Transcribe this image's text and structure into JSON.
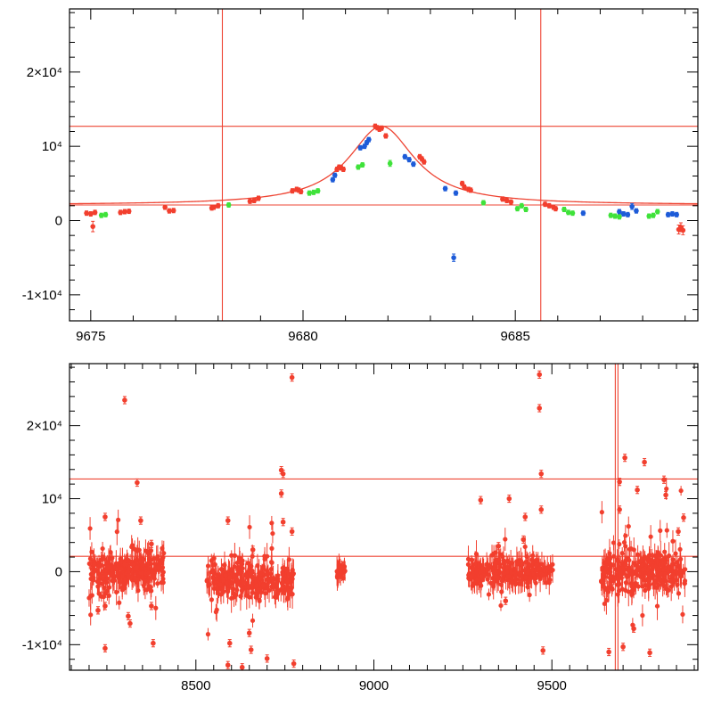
{
  "colors": {
    "red": "#f23f2e",
    "blue": "#1d5bd8",
    "green": "#3fe23a",
    "line": "#ee4433",
    "axis": "#000000"
  },
  "chart_data": [
    {
      "type": "scatter",
      "name": "top-panel-zoom",
      "title": "",
      "xlabel": "",
      "ylabel": "",
      "xlim": [
        9674.5,
        9689.3
      ],
      "ylim": [
        -13500,
        28500
      ],
      "x_ticks": [
        {
          "value": 9675,
          "label": "9675"
        },
        {
          "value": 9680,
          "label": "9680"
        },
        {
          "value": 9685,
          "label": "9685"
        }
      ],
      "y_ticks": [
        {
          "value": 20000,
          "label": "2×10⁴"
        },
        {
          "value": 10000,
          "label": "10⁴"
        },
        {
          "value": 0,
          "label": "0"
        },
        {
          "value": -10000,
          "label": "-1×10⁴"
        }
      ],
      "vlines": [
        9678.1,
        9685.6
      ],
      "hlines": [
        12700,
        2100
      ],
      "model": {
        "t0": 9681.85,
        "baseline": 2100,
        "peak": 12700,
        "width": 0.95
      },
      "series": [
        {
          "name": "red",
          "color": "#f23f2e",
          "points": [
            [
              9674.9,
              1000,
              300
            ],
            [
              9675.0,
              900,
              300
            ],
            [
              9675.05,
              -800,
              700
            ],
            [
              9675.1,
              1100,
              300
            ],
            [
              9675.7,
              1100,
              300
            ],
            [
              9675.8,
              1200,
              300
            ],
            [
              9675.9,
              1250,
              300
            ],
            [
              9676.75,
              1800,
              300
            ],
            [
              9676.85,
              1300,
              300
            ],
            [
              9676.95,
              1350,
              300
            ],
            [
              9677.85,
              1700,
              300
            ],
            [
              9677.9,
              1800,
              300
            ],
            [
              9678.0,
              2000,
              300
            ],
            [
              9678.75,
              2600,
              300
            ],
            [
              9678.85,
              2700,
              300
            ],
            [
              9678.95,
              3000,
              300
            ],
            [
              9679.75,
              4000,
              300
            ],
            [
              9679.85,
              4200,
              300
            ],
            [
              9679.9,
              4100,
              300
            ],
            [
              9679.95,
              3900,
              300
            ],
            [
              9680.8,
              6900,
              300
            ],
            [
              9680.85,
              7200,
              300
            ],
            [
              9680.9,
              7100,
              300
            ],
            [
              9680.95,
              6900,
              300
            ],
            [
              9681.7,
              12700,
              300
            ],
            [
              9681.75,
              12500,
              300
            ],
            [
              9681.8,
              12300,
              300
            ],
            [
              9681.85,
              12450,
              300
            ],
            [
              9681.95,
              11400,
              300
            ],
            [
              9682.75,
              8600,
              300
            ],
            [
              9682.8,
              8300,
              300
            ],
            [
              9682.85,
              7900,
              300
            ],
            [
              9683.75,
              5000,
              300
            ],
            [
              9683.8,
              4500,
              300
            ],
            [
              9683.9,
              4200,
              300
            ],
            [
              9683.95,
              4100,
              300
            ],
            [
              9684.7,
              2900,
              300
            ],
            [
              9684.8,
              2700,
              300
            ],
            [
              9684.9,
              2500,
              300
            ],
            [
              9685.7,
              2200,
              300
            ],
            [
              9685.8,
              2000,
              300
            ],
            [
              9685.9,
              1800,
              300
            ],
            [
              9685.95,
              1600,
              300
            ],
            [
              9688.85,
              -1200,
              600
            ],
            [
              9688.9,
              -900,
              600
            ],
            [
              9688.95,
              -1300,
              600
            ]
          ]
        },
        {
          "name": "blue",
          "color": "#1d5bd8",
          "points": [
            [
              9680.7,
              5500,
              300
            ],
            [
              9680.75,
              6100,
              300
            ],
            [
              9681.35,
              9800,
              300
            ],
            [
              9681.45,
              10000,
              300
            ],
            [
              9681.5,
              10500,
              300
            ],
            [
              9681.55,
              10900,
              300
            ],
            [
              9682.4,
              8600,
              300
            ],
            [
              9682.5,
              8200,
              300
            ],
            [
              9682.6,
              7600,
              300
            ],
            [
              9683.35,
              4300,
              300
            ],
            [
              9683.55,
              -5000,
              500
            ],
            [
              9683.6,
              3700,
              300
            ],
            [
              9686.6,
              1000,
              300
            ],
            [
              9687.45,
              1200,
              300
            ],
            [
              9687.55,
              900,
              300
            ],
            [
              9687.65,
              800,
              300
            ],
            [
              9687.75,
              1900,
              400
            ],
            [
              9687.85,
              1300,
              300
            ],
            [
              9688.6,
              800,
              300
            ],
            [
              9688.7,
              900,
              300
            ],
            [
              9688.8,
              800,
              300
            ]
          ]
        },
        {
          "name": "green",
          "color": "#3fe23a",
          "points": [
            [
              9675.25,
              700,
              300
            ],
            [
              9675.35,
              800,
              300
            ],
            [
              9678.25,
              2100,
              300
            ],
            [
              9680.15,
              3700,
              300
            ],
            [
              9680.25,
              3800,
              300
            ],
            [
              9680.35,
              4000,
              300
            ],
            [
              9681.3,
              7200,
              300
            ],
            [
              9681.4,
              7500,
              300
            ],
            [
              9682.05,
              7700,
              400
            ],
            [
              9684.25,
              2400,
              300
            ],
            [
              9685.05,
              1600,
              300
            ],
            [
              9685.15,
              2000,
              300
            ],
            [
              9685.25,
              1500,
              300
            ],
            [
              9686.15,
              1500,
              300
            ],
            [
              9686.25,
              1100,
              300
            ],
            [
              9686.35,
              1000,
              300
            ],
            [
              9687.25,
              700,
              300
            ],
            [
              9687.35,
              600,
              300
            ],
            [
              9687.45,
              500,
              300
            ],
            [
              9688.15,
              600,
              300
            ],
            [
              9688.25,
              700,
              300
            ],
            [
              9688.35,
              1200,
              300
            ]
          ]
        }
      ]
    },
    {
      "type": "scatter",
      "name": "bottom-panel-full",
      "title": "",
      "xlabel": "",
      "ylabel": "",
      "xlim": [
        8145,
        9910
      ],
      "ylim": [
        -13500,
        28500
      ],
      "x_ticks": [
        {
          "value": 8500,
          "label": "8500"
        },
        {
          "value": 9000,
          "label": "9000"
        },
        {
          "value": 9500,
          "label": "9500"
        }
      ],
      "y_ticks": [
        {
          "value": 20000,
          "label": "2×10⁴"
        },
        {
          "value": 10000,
          "label": "10⁴"
        },
        {
          "value": 0,
          "label": "0"
        },
        {
          "value": -10000,
          "label": "-1×10⁴"
        }
      ],
      "vlines": [
        9678.1,
        9685.6
      ],
      "hlines": [
        12700,
        2100
      ],
      "clusters": [
        {
          "x": [
            8200,
            8410
          ],
          "center": 0,
          "spread": 2200,
          "n": 260
        },
        {
          "x": [
            8530,
            8775
          ],
          "center": -1200,
          "spread": 2000,
          "n": 300
        },
        {
          "x": [
            8895,
            8920
          ],
          "center": 0,
          "spread": 900,
          "n": 25
        },
        {
          "x": [
            9265,
            9505
          ],
          "center": 0,
          "spread": 1800,
          "n": 260
        },
        {
          "x": [
            9635,
            9875
          ],
          "center": 200,
          "spread": 2600,
          "n": 300
        }
      ],
      "series": [
        {
          "name": "outliers",
          "color": "#f23f2e",
          "points": [
            [
              8245,
              7500
            ],
            [
              8300,
              23500
            ],
            [
              8335,
              12200
            ],
            [
              8345,
              7000
            ],
            [
              8375,
              3800
            ],
            [
              8375,
              -4700
            ],
            [
              8380,
              -9800
            ],
            [
              8225,
              -5300
            ],
            [
              8245,
              -3000
            ],
            [
              8245,
              -4700
            ],
            [
              8245,
              -10500
            ],
            [
              8310,
              -6100
            ],
            [
              8315,
              -7100
            ],
            [
              8590,
              7000
            ],
            [
              8595,
              -9800
            ],
            [
              8590,
              -12800
            ],
            [
              8650,
              -8400
            ],
            [
              8655,
              -10700
            ],
            [
              8660,
              3000
            ],
            [
              8740,
              13900
            ],
            [
              8745,
              13400
            ],
            [
              8740,
              10700
            ],
            [
              8745,
              6800
            ],
            [
              8770,
              26600
            ],
            [
              8770,
              5500
            ],
            [
              8775,
              -12600
            ],
            [
              8630,
              -13100
            ],
            [
              8700,
              -11900
            ],
            [
              9300,
              9800
            ],
            [
              9380,
              10000
            ],
            [
              9425,
              7500
            ],
            [
              9420,
              4400
            ],
            [
              9465,
              27000
            ],
            [
              9465,
              22400
            ],
            [
              9470,
              13400
            ],
            [
              9470,
              8500
            ],
            [
              9475,
              -10800
            ],
            [
              9370,
              -4000
            ],
            [
              9350,
              3500
            ],
            [
              9660,
              -11000
            ],
            [
              9705,
              15600
            ],
            [
              9740,
              11200
            ],
            [
              9760,
              15000
            ],
            [
              9775,
              -11100
            ],
            [
              9815,
              12600
            ],
            [
              9820,
              10500
            ],
            [
              9855,
              5500
            ],
            [
              9870,
              7400
            ],
            [
              9730,
              -7800
            ],
            [
              9700,
              -10300
            ],
            [
              9690,
              12300
            ],
            [
              9690,
              8500
            ]
          ]
        }
      ]
    }
  ]
}
